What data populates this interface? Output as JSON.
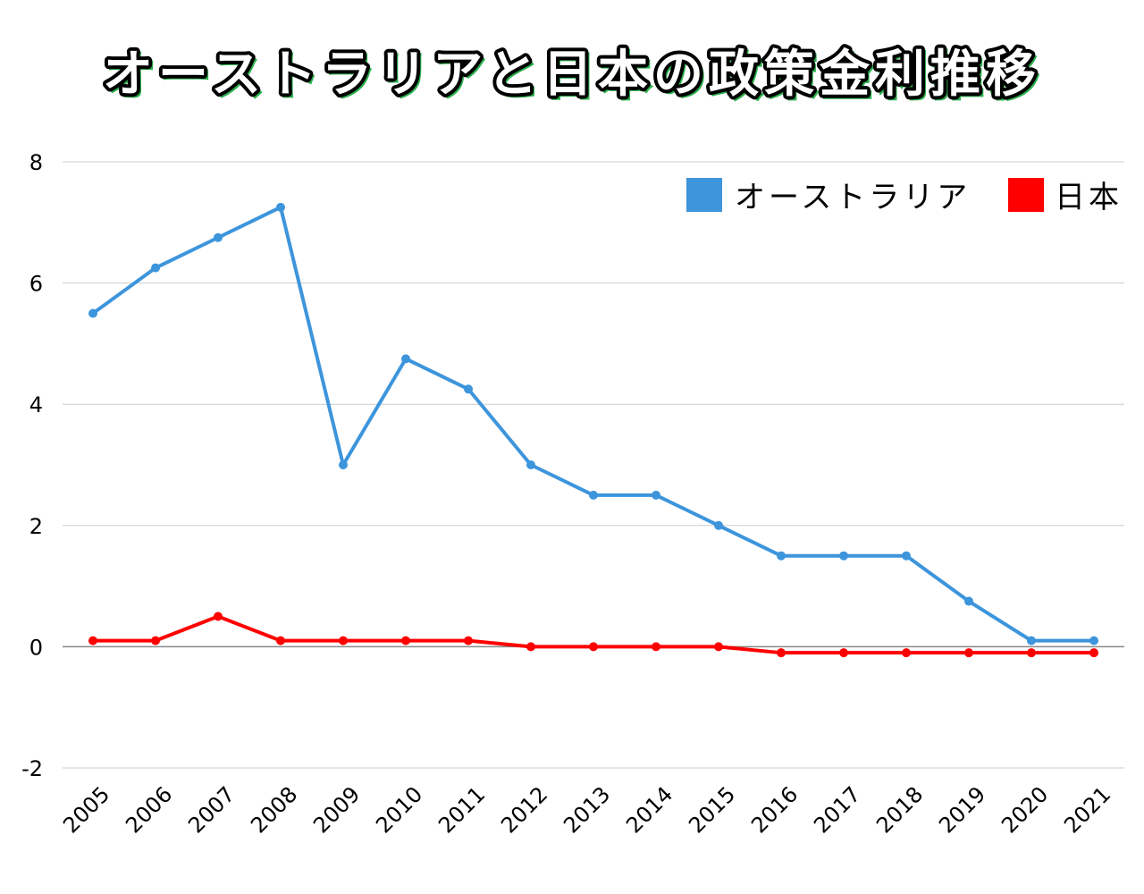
{
  "chart_data": {
    "type": "line",
    "title": "オーストラリアと日本の政策金利推移",
    "xlabel": "",
    "ylabel": "",
    "categories": [
      "2005",
      "2006",
      "2007",
      "2008",
      "2009",
      "2010",
      "2011",
      "2012",
      "2013",
      "2014",
      "2015",
      "2016",
      "2017",
      "2018",
      "2019",
      "2020",
      "2021"
    ],
    "ylim": [
      -2,
      8
    ],
    "yticks": [
      "-2",
      "0",
      "2",
      "4",
      "6",
      "8"
    ],
    "grid": true,
    "legend_position": "top-right",
    "series": [
      {
        "name": "オーストラリア",
        "color": "#3d95dc",
        "values": [
          5.5,
          6.25,
          6.75,
          7.25,
          3.0,
          4.75,
          4.25,
          3.0,
          2.5,
          2.5,
          2.0,
          1.5,
          1.5,
          1.5,
          0.75,
          0.1,
          0.1
        ]
      },
      {
        "name": "日本",
        "color": "#ff0000",
        "values": [
          0.1,
          0.1,
          0.5,
          0.1,
          0.1,
          0.1,
          0.1,
          0,
          0,
          0,
          0,
          -0.1,
          -0.1,
          -0.1,
          -0.1,
          -0.1,
          -0.1
        ]
      }
    ]
  }
}
